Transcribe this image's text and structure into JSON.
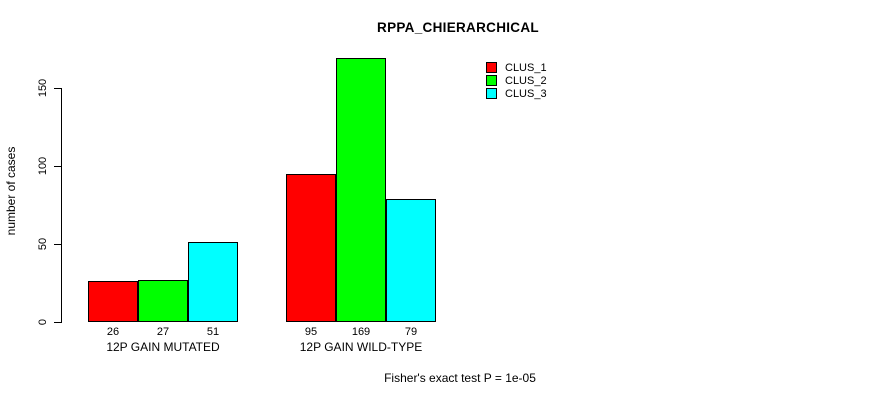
{
  "chart_data": {
    "type": "bar",
    "title": "RPPA_CHIERARCHICAL",
    "xlabel": "",
    "ylabel": "number of cases",
    "categories": [
      "12P GAIN MUTATED",
      "12P GAIN WILD-TYPE"
    ],
    "series": [
      {
        "name": "CLUS_1",
        "color": "#ff0000",
        "values": [
          26,
          95
        ]
      },
      {
        "name": "CLUS_2",
        "color": "#00ff00",
        "values": [
          27,
          169
        ]
      },
      {
        "name": "CLUS_3",
        "color": "#00ffff",
        "values": [
          51,
          79
        ]
      }
    ],
    "yticks": [
      0,
      50,
      100,
      150
    ],
    "ylim": [
      0,
      169
    ],
    "grid": false,
    "legend_position": "top-right",
    "bar_border_color": "#000000",
    "annotation": "Fisher's exact test P = 1e-05"
  }
}
